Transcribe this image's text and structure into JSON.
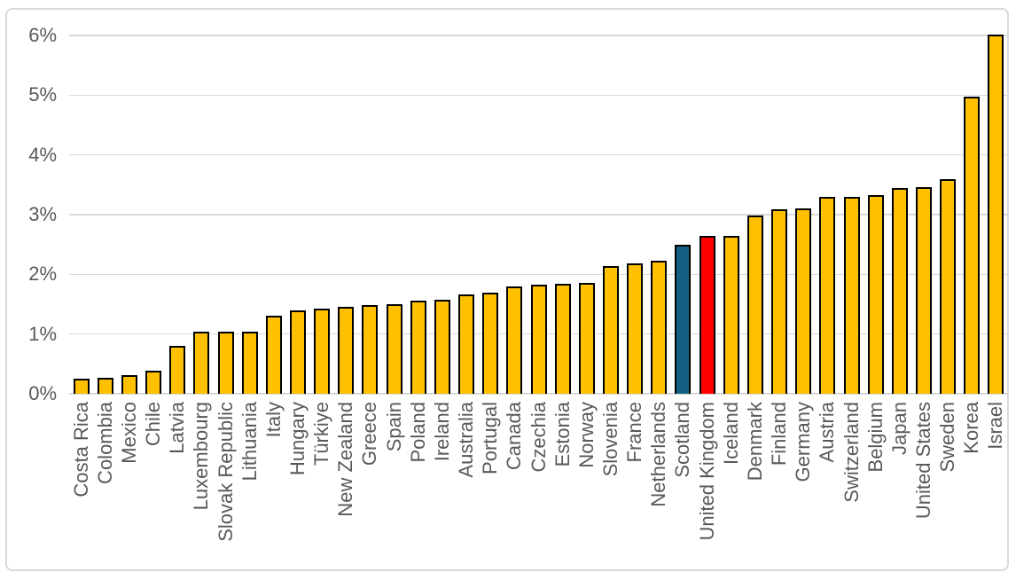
{
  "chart_data": {
    "type": "bar",
    "title": "",
    "xlabel": "",
    "ylabel": "",
    "unit": "%",
    "ylim": [
      0,
      6
    ],
    "grid": true,
    "legend": false,
    "y_ticks": [
      "0%",
      "1%",
      "2%",
      "3%",
      "4%",
      "5%",
      "6%"
    ],
    "categories": [
      "Costa Rica",
      "Colombia",
      "Mexico",
      "Chile",
      "Latvia",
      "Luxembourg",
      "Slovak Republic",
      "Lithuania",
      "Italy",
      "Hungary",
      "Türkiye",
      "New Zealand",
      "Greece",
      "Spain",
      "Poland",
      "Ireland",
      "Australia",
      "Portugal",
      "Canada",
      "Czechia",
      "Estonia",
      "Norway",
      "Slovenia",
      "France",
      "Netherlands",
      "Scotland",
      "United Kingdom",
      "Iceland",
      "Denmark",
      "Finland",
      "Germany",
      "Austria",
      "Switzerland",
      "Belgium",
      "Japan",
      "United States",
      "Sweden",
      "Korea",
      "Israel"
    ],
    "values": [
      0.26,
      0.27,
      0.31,
      0.38,
      0.8,
      1.04,
      1.04,
      1.04,
      1.31,
      1.39,
      1.43,
      1.46,
      1.49,
      1.5,
      1.56,
      1.58,
      1.66,
      1.69,
      1.8,
      1.82,
      1.84,
      1.85,
      2.14,
      2.18,
      2.23,
      2.5,
      2.65,
      2.64,
      2.99,
      3.09,
      3.11,
      3.3,
      3.3,
      3.33,
      3.45,
      3.46,
      3.6,
      4.97,
      6.02
    ],
    "colors": {
      "default_bar": "#FFC000",
      "bar_outline": "#000000",
      "highlights": {
        "Scotland": "#156082",
        "United Kingdom": "#FF0000"
      },
      "gridline": "#D9D9D9",
      "axis_line": "#D9D9D9",
      "tick_text": "#595959",
      "frame_border": "#D9D9D9",
      "background": "#FFFFFF"
    }
  }
}
